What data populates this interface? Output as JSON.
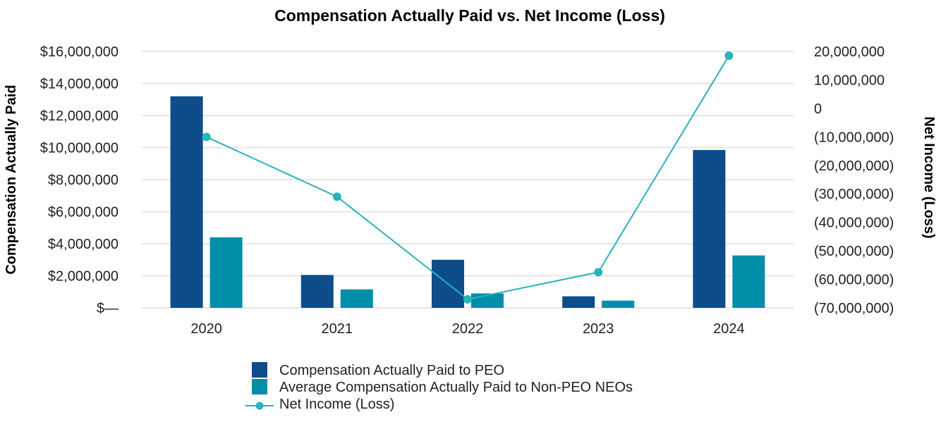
{
  "chart_data": {
    "type": "bar",
    "title": "Compensation Actually Paid vs. Net Income (Loss)",
    "categories": [
      "2020",
      "2021",
      "2022",
      "2023",
      "2024"
    ],
    "ylabel": "Compensation Actually Paid",
    "y2label": "Net Income (Loss)",
    "ylim": [
      0,
      16000000
    ],
    "y2lim": [
      -70000000,
      20000000
    ],
    "yticks": [
      0,
      2000000,
      4000000,
      6000000,
      8000000,
      10000000,
      12000000,
      14000000,
      16000000
    ],
    "ytick_labels": [
      "$—",
      "$2,000,000",
      "$4,000,000",
      "$6,000,000",
      "$8,000,000",
      "$10,000,000",
      "$12,000,000",
      "$14,000,000",
      "$16,000,000"
    ],
    "y2ticks": [
      -70000000,
      -60000000,
      -50000000,
      -40000000,
      -30000000,
      -20000000,
      -10000000,
      0,
      10000000,
      20000000
    ],
    "y2tick_labels": [
      "(70,000,000)",
      "(60,000,000)",
      "(50,000,000)",
      "(40,000,000)",
      "(30,000,000)",
      "(20,000,000)",
      "(10,000,000)",
      "0",
      "10,000,000",
      "20,000,000"
    ],
    "grid": true,
    "legend_position": "bottom-center",
    "series": [
      {
        "name": "Compensation Actually Paid to PEO",
        "kind": "bar",
        "axis": "left",
        "color": "#0e4c8a",
        "values": [
          13200000,
          2050000,
          3000000,
          720000,
          9850000
        ]
      },
      {
        "name": "Average Compensation Actually Paid to Non-PEO NEOs",
        "kind": "bar",
        "axis": "left",
        "color": "#008ea8",
        "values": [
          4400000,
          1150000,
          900000,
          450000,
          3270000
        ]
      },
      {
        "name": "Net Income (Loss)",
        "kind": "line",
        "axis": "right",
        "color": "#2ab3b8",
        "values": [
          -10000000,
          -31000000,
          -67000000,
          -57500000,
          18500000
        ]
      }
    ]
  }
}
